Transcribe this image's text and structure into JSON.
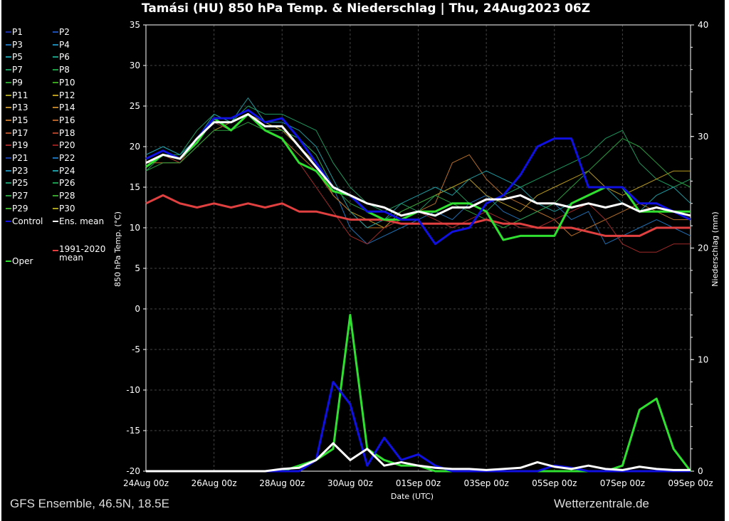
{
  "title": "Tamási  (HU)  850 hPa Temp. & Niederschlag | Thu, 24Aug2023 06Z",
  "footer_left": "GFS Ensemble, 46.5N, 18.5E",
  "footer_right": "Wetterzentrale.de",
  "legend": [
    {
      "label": "P1",
      "color": "#1a2fa8"
    },
    {
      "label": "P2",
      "color": "#1e4fb0"
    },
    {
      "label": "P3",
      "color": "#1f6fb5"
    },
    {
      "label": "P4",
      "color": "#1f86b0"
    },
    {
      "label": "P5",
      "color": "#1e9aa8"
    },
    {
      "label": "P6",
      "color": "#1e9a80"
    },
    {
      "label": "P7",
      "color": "#1e9a60"
    },
    {
      "label": "P8",
      "color": "#1e9a45"
    },
    {
      "label": "P9",
      "color": "#2aa030"
    },
    {
      "label": "P10",
      "color": "#3aa020"
    },
    {
      "label": "P11",
      "color": "#a8a020"
    },
    {
      "label": "P12",
      "color": "#b89a20"
    },
    {
      "label": "P13",
      "color": "#b88a2a"
    },
    {
      "label": "P14",
      "color": "#b8802a"
    },
    {
      "label": "P15",
      "color": "#b8702a"
    },
    {
      "label": "P16",
      "color": "#b0602a"
    },
    {
      "label": "P17",
      "color": "#b0502a"
    },
    {
      "label": "P18",
      "color": "#a8402a"
    },
    {
      "label": "P19",
      "color": "#a02a2a"
    },
    {
      "label": "P20",
      "color": "#902020"
    },
    {
      "label": "P21",
      "color": "#1a3fa8"
    },
    {
      "label": "P22",
      "color": "#1f6fb5"
    },
    {
      "label": "P23",
      "color": "#1f8ab0"
    },
    {
      "label": "P24",
      "color": "#1e9aa0"
    },
    {
      "label": "P25",
      "color": "#1e9a70"
    },
    {
      "label": "P26",
      "color": "#1e9a50"
    },
    {
      "label": "P27",
      "color": "#2aa040"
    },
    {
      "label": "P28",
      "color": "#3aa030"
    },
    {
      "label": "P29",
      "color": "#40b030"
    },
    {
      "label": "P30",
      "color": "#a8a020"
    },
    {
      "label": "Control",
      "color": "#1010e0"
    },
    {
      "label": "Ens. mean",
      "color": "#ffffff"
    },
    {
      "label": "1991-2020 mean",
      "color": "#e04040"
    },
    {
      "label": "Oper",
      "color": "#30e030"
    }
  ],
  "chart_data": {
    "type": "line",
    "title": "Tamási  (HU)  850 hPa Temp. & Niederschlag | Thu, 24Aug2023 06Z",
    "xlabel": "Date (UTC)",
    "ylabel": "850 hPa Temp. (°C)",
    "y2label": "Niederschlag (mm)",
    "ylim": [
      -20,
      35
    ],
    "y2lim": [
      0,
      40
    ],
    "yticks": [
      "35",
      "30",
      "25",
      "20",
      "15",
      "10",
      "5",
      "0",
      "-5",
      "-10",
      "-15",
      "-20"
    ],
    "y2ticks": [
      "40",
      "30",
      "20",
      "10",
      "0"
    ],
    "xticks": [
      "24Aug 00z",
      "26Aug 00z",
      "28Aug 00z",
      "30Aug 00z",
      "01Sep 00z",
      "03Sep 00z",
      "05Sep 00z",
      "07Sep 00z",
      "09Sep 00z"
    ],
    "x_days": [
      0,
      0.5,
      1,
      1.5,
      2,
      2.5,
      3,
      3.5,
      4,
      4.5,
      5,
      5.5,
      6,
      6.5,
      7,
      7.5,
      8,
      8.5,
      9,
      9.5,
      10,
      10.5,
      11,
      11.5,
      12,
      12.5,
      13,
      13.5,
      14,
      14.5,
      15,
      15.5,
      16
    ],
    "grid": true,
    "series": [
      {
        "name": "P3",
        "color": "#1f6fb5",
        "width": 1,
        "temp": [
          19,
          20,
          19,
          21,
          23,
          22,
          24,
          23,
          22,
          21,
          19,
          15,
          10,
          8,
          9,
          10,
          11,
          12,
          11,
          13,
          14,
          12,
          11,
          12,
          13,
          11,
          12,
          8,
          9,
          10,
          11,
          10,
          9
        ]
      },
      {
        "name": "P7",
        "color": "#1e9a60",
        "width": 1,
        "temp": [
          17,
          19,
          19,
          22,
          24,
          23,
          25,
          24,
          24,
          23,
          22,
          18,
          15,
          13,
          12,
          13,
          12,
          14,
          15,
          13,
          12,
          14,
          15,
          16,
          17,
          18,
          19,
          21,
          22,
          18,
          16,
          15,
          16
        ]
      },
      {
        "name": "P12",
        "color": "#b89a20",
        "width": 1,
        "temp": [
          18,
          19,
          18,
          20,
          22,
          23,
          24,
          23,
          22,
          20,
          18,
          14,
          12,
          11,
          10,
          12,
          13,
          14,
          15,
          16,
          14,
          13,
          12,
          14,
          15,
          16,
          17,
          15,
          14,
          15,
          16,
          17,
          17
        ]
      },
      {
        "name": "P15",
        "color": "#b8702a",
        "width": 1,
        "temp": [
          18,
          18,
          18,
          21,
          23,
          23,
          24,
          22,
          21,
          19,
          17,
          14,
          12,
          10,
          10,
          11,
          12,
          13,
          18,
          19,
          16,
          14,
          13,
          12,
          11,
          9,
          10,
          11,
          12,
          13,
          12,
          11,
          11
        ]
      },
      {
        "name": "P19",
        "color": "#a02a2a",
        "width": 1,
        "temp": [
          18,
          19,
          18,
          21,
          23,
          22,
          24,
          22,
          21,
          18,
          15,
          12,
          9,
          8,
          10,
          11,
          12,
          11,
          10,
          11,
          12,
          11,
          10,
          10,
          11,
          12,
          13,
          11,
          8,
          7,
          7,
          8,
          8
        ]
      },
      {
        "name": "P24",
        "color": "#1e9aa0",
        "width": 1,
        "temp": [
          19,
          20,
          19,
          21,
          24,
          23,
          26,
          23,
          23,
          22,
          20,
          16,
          12,
          10,
          11,
          13,
          14,
          15,
          14,
          16,
          17,
          16,
          15,
          13,
          12,
          13,
          14,
          15,
          13,
          12,
          14,
          15,
          13
        ]
      },
      {
        "name": "P27",
        "color": "#2aa040",
        "width": 1,
        "temp": [
          17,
          18,
          18,
          20,
          22,
          22,
          23,
          22,
          22,
          21,
          19,
          15,
          13,
          12,
          11,
          12,
          13,
          14,
          13,
          12,
          11,
          10,
          11,
          12,
          13,
          15,
          17,
          19,
          21,
          20,
          18,
          16,
          15
        ]
      },
      {
        "name": "1991-2020 mean",
        "color": "#e04040",
        "width": 3,
        "temp": [
          13,
          14,
          13,
          12.5,
          13,
          12.5,
          13,
          12.5,
          13,
          12,
          12,
          11.5,
          11,
          11,
          11,
          10.5,
          10.5,
          10.5,
          10.5,
          10.5,
          11,
          10.5,
          10.5,
          10,
          10,
          10,
          9.5,
          9,
          9,
          9,
          10,
          10,
          10
        ]
      },
      {
        "name": "Oper",
        "color": "#30e030",
        "width": 3,
        "temp": [
          17.5,
          19,
          18.5,
          20.5,
          23.5,
          22,
          24,
          22,
          21,
          18,
          17,
          14.5,
          14,
          12,
          11,
          11,
          12,
          12,
          13,
          13,
          12,
          8.5,
          9,
          9,
          9,
          13,
          14,
          15,
          15,
          12,
          12,
          12,
          12
        ],
        "precip": [
          0,
          0,
          0,
          0,
          0,
          0,
          0,
          0,
          0,
          0.5,
          1,
          2,
          14,
          2,
          1,
          0.5,
          0.5,
          0,
          0,
          0,
          0,
          0,
          0,
          0,
          0,
          0,
          0,
          0,
          0.5,
          5.5,
          6.5,
          2,
          0
        ]
      },
      {
        "name": "Control",
        "color": "#1010e0",
        "width": 3,
        "temp": [
          18.5,
          19.5,
          18.5,
          21,
          23.5,
          23.5,
          24.5,
          23,
          23.5,
          21,
          18,
          15,
          14,
          12,
          12,
          11,
          11,
          8,
          9.5,
          10,
          13,
          14,
          16.5,
          20,
          21,
          21,
          15,
          15,
          15,
          13,
          13,
          12,
          11
        ],
        "precip": [
          0,
          0,
          0,
          0,
          0,
          0,
          0,
          0,
          0,
          0,
          1,
          8,
          6,
          0.5,
          3,
          1,
          1.5,
          0.5,
          0,
          0,
          0,
          0,
          0,
          0,
          0.5,
          0.3,
          0,
          0,
          0,
          0,
          0,
          0,
          0
        ]
      },
      {
        "name": "Ens. mean",
        "color": "#ffffff",
        "width": 3,
        "temp": [
          18,
          19,
          18.5,
          21,
          23,
          23,
          24,
          22.5,
          22.5,
          20,
          17.5,
          15,
          14,
          13,
          12.5,
          11.5,
          12,
          11.5,
          12.5,
          12.5,
          13.5,
          13.5,
          14,
          13,
          13,
          12.5,
          13,
          12.5,
          13,
          12,
          12.5,
          12,
          11.5
        ],
        "precip": [
          0,
          0,
          0,
          0,
          0,
          0,
          0,
          0,
          0.2,
          0.3,
          1,
          2.5,
          1,
          2,
          0.5,
          0.8,
          0.5,
          0.3,
          0.2,
          0.2,
          0.1,
          0.2,
          0.3,
          0.8,
          0.4,
          0.2,
          0.5,
          0.2,
          0.1,
          0.4,
          0.2,
          0.1,
          0.1
        ]
      }
    ]
  }
}
